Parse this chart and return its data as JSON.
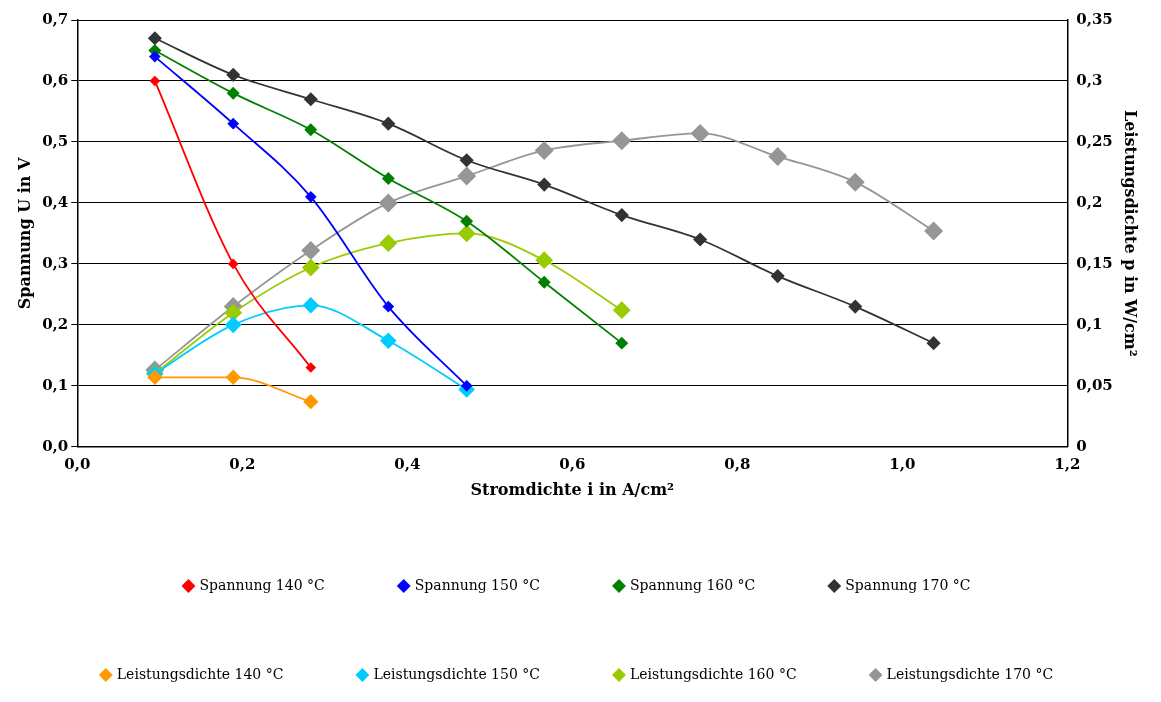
{
  "chart_data": {
    "type": "line",
    "xlabel": "Stromdichte i in A/cm²",
    "ylabel": "Spannung U in V",
    "y2label": "Leistungsdichte p in W/cm²",
    "x": [
      0.094,
      0.189,
      0.283,
      0.377,
      0.472,
      0.566,
      0.66,
      0.755,
      0.849,
      0.943,
      1.038
    ],
    "series": [
      {
        "name": "Spannung 140 °C",
        "color": "#ff0000",
        "x": [
          0.094,
          0.189,
          0.283
        ],
        "values": [
          0.6,
          0.3,
          0.13
        ]
      },
      {
        "name": "Spannung 150 °C",
        "color": "#0000ff",
        "x": [
          0.094,
          0.189,
          0.283,
          0.377,
          0.472
        ],
        "values": [
          0.64,
          0.53,
          0.41,
          0.23,
          0.1
        ]
      },
      {
        "name": "Spannung 160 °C",
        "color": "#008000",
        "x": [
          0.094,
          0.189,
          0.283,
          0.377,
          0.472,
          0.566,
          0.66
        ],
        "values": [
          0.65,
          0.58,
          0.52,
          0.44,
          0.37,
          0.27,
          0.17
        ]
      },
      {
        "name": "Spannung 170 °C",
        "color": "#333333",
        "values": [
          0.67,
          0.61,
          0.57,
          0.53,
          0.47,
          0.43,
          0.38,
          0.34,
          0.28,
          0.23,
          0.17
        ]
      },
      {
        "name": "Leistungsdichte 140 °C",
        "color": "#ff9900",
        "axis": "y2",
        "x": [
          0.094,
          0.189,
          0.283
        ],
        "values": [
          0.057,
          0.057,
          0.037
        ]
      },
      {
        "name": "Leistungsdichte 150 °C",
        "color": "#00ccff",
        "axis": "y2",
        "x": [
          0.094,
          0.189,
          0.283,
          0.377,
          0.472
        ],
        "values": [
          0.06,
          0.1,
          0.116,
          0.087,
          0.047
        ]
      },
      {
        "name": "Leistungsdichte 160 °C",
        "color": "#99cc00",
        "axis": "y2",
        "x": [
          0.094,
          0.189,
          0.283,
          0.377,
          0.472,
          0.566,
          0.66
        ],
        "values": [
          0.06,
          0.11,
          0.147,
          0.167,
          0.175,
          0.153,
          0.112
        ]
      },
      {
        "name": "Leistungsdichte 170 °C",
        "color": "#969696",
        "axis": "y2",
        "values": [
          0.063,
          0.115,
          0.161,
          0.2,
          0.222,
          0.243,
          0.251,
          0.257,
          0.238,
          0.217,
          0.177
        ]
      }
    ],
    "xlim": [
      0,
      1.2
    ],
    "xticks": [
      {
        "value": 0,
        "label": "0,0"
      },
      {
        "value": 0.2,
        "label": "0,2"
      },
      {
        "value": 0.4,
        "label": "0,4"
      },
      {
        "value": 0.6,
        "label": "0,6"
      },
      {
        "value": 0.8,
        "label": "0,8"
      },
      {
        "value": 1,
        "label": "1,0"
      },
      {
        "value": 1.2,
        "label": "1,2"
      }
    ],
    "ylim": [
      0,
      0.7
    ],
    "yticks": [
      {
        "value": 0,
        "label": "0,0"
      },
      {
        "value": 0.1,
        "label": "0,1"
      },
      {
        "value": 0.2,
        "label": "0,2"
      },
      {
        "value": 0.3,
        "label": "0,3"
      },
      {
        "value": 0.4,
        "label": "0,4"
      },
      {
        "value": 0.5,
        "label": "0,5"
      },
      {
        "value": 0.6,
        "label": "0,6"
      },
      {
        "value": 0.7,
        "label": "0,7"
      }
    ],
    "y2lim": [
      0,
      0.35
    ],
    "y2ticks": [
      0,
      {
        "value": 0.05,
        "label": "0,05"
      },
      {
        "value": 0.1,
        "label": "0,1"
      },
      {
        "value": 0.15,
        "label": "0,15"
      },
      {
        "value": 0.2,
        "label": "0,2"
      },
      {
        "value": 0.25,
        "label": "0,25"
      },
      {
        "value": 0.3,
        "label": "0,3"
      },
      {
        "value": 0.35,
        "label": "0,35"
      }
    ],
    "grid": "y",
    "legend": "bottom",
    "marker": "diamond",
    "line_style": "solid"
  }
}
